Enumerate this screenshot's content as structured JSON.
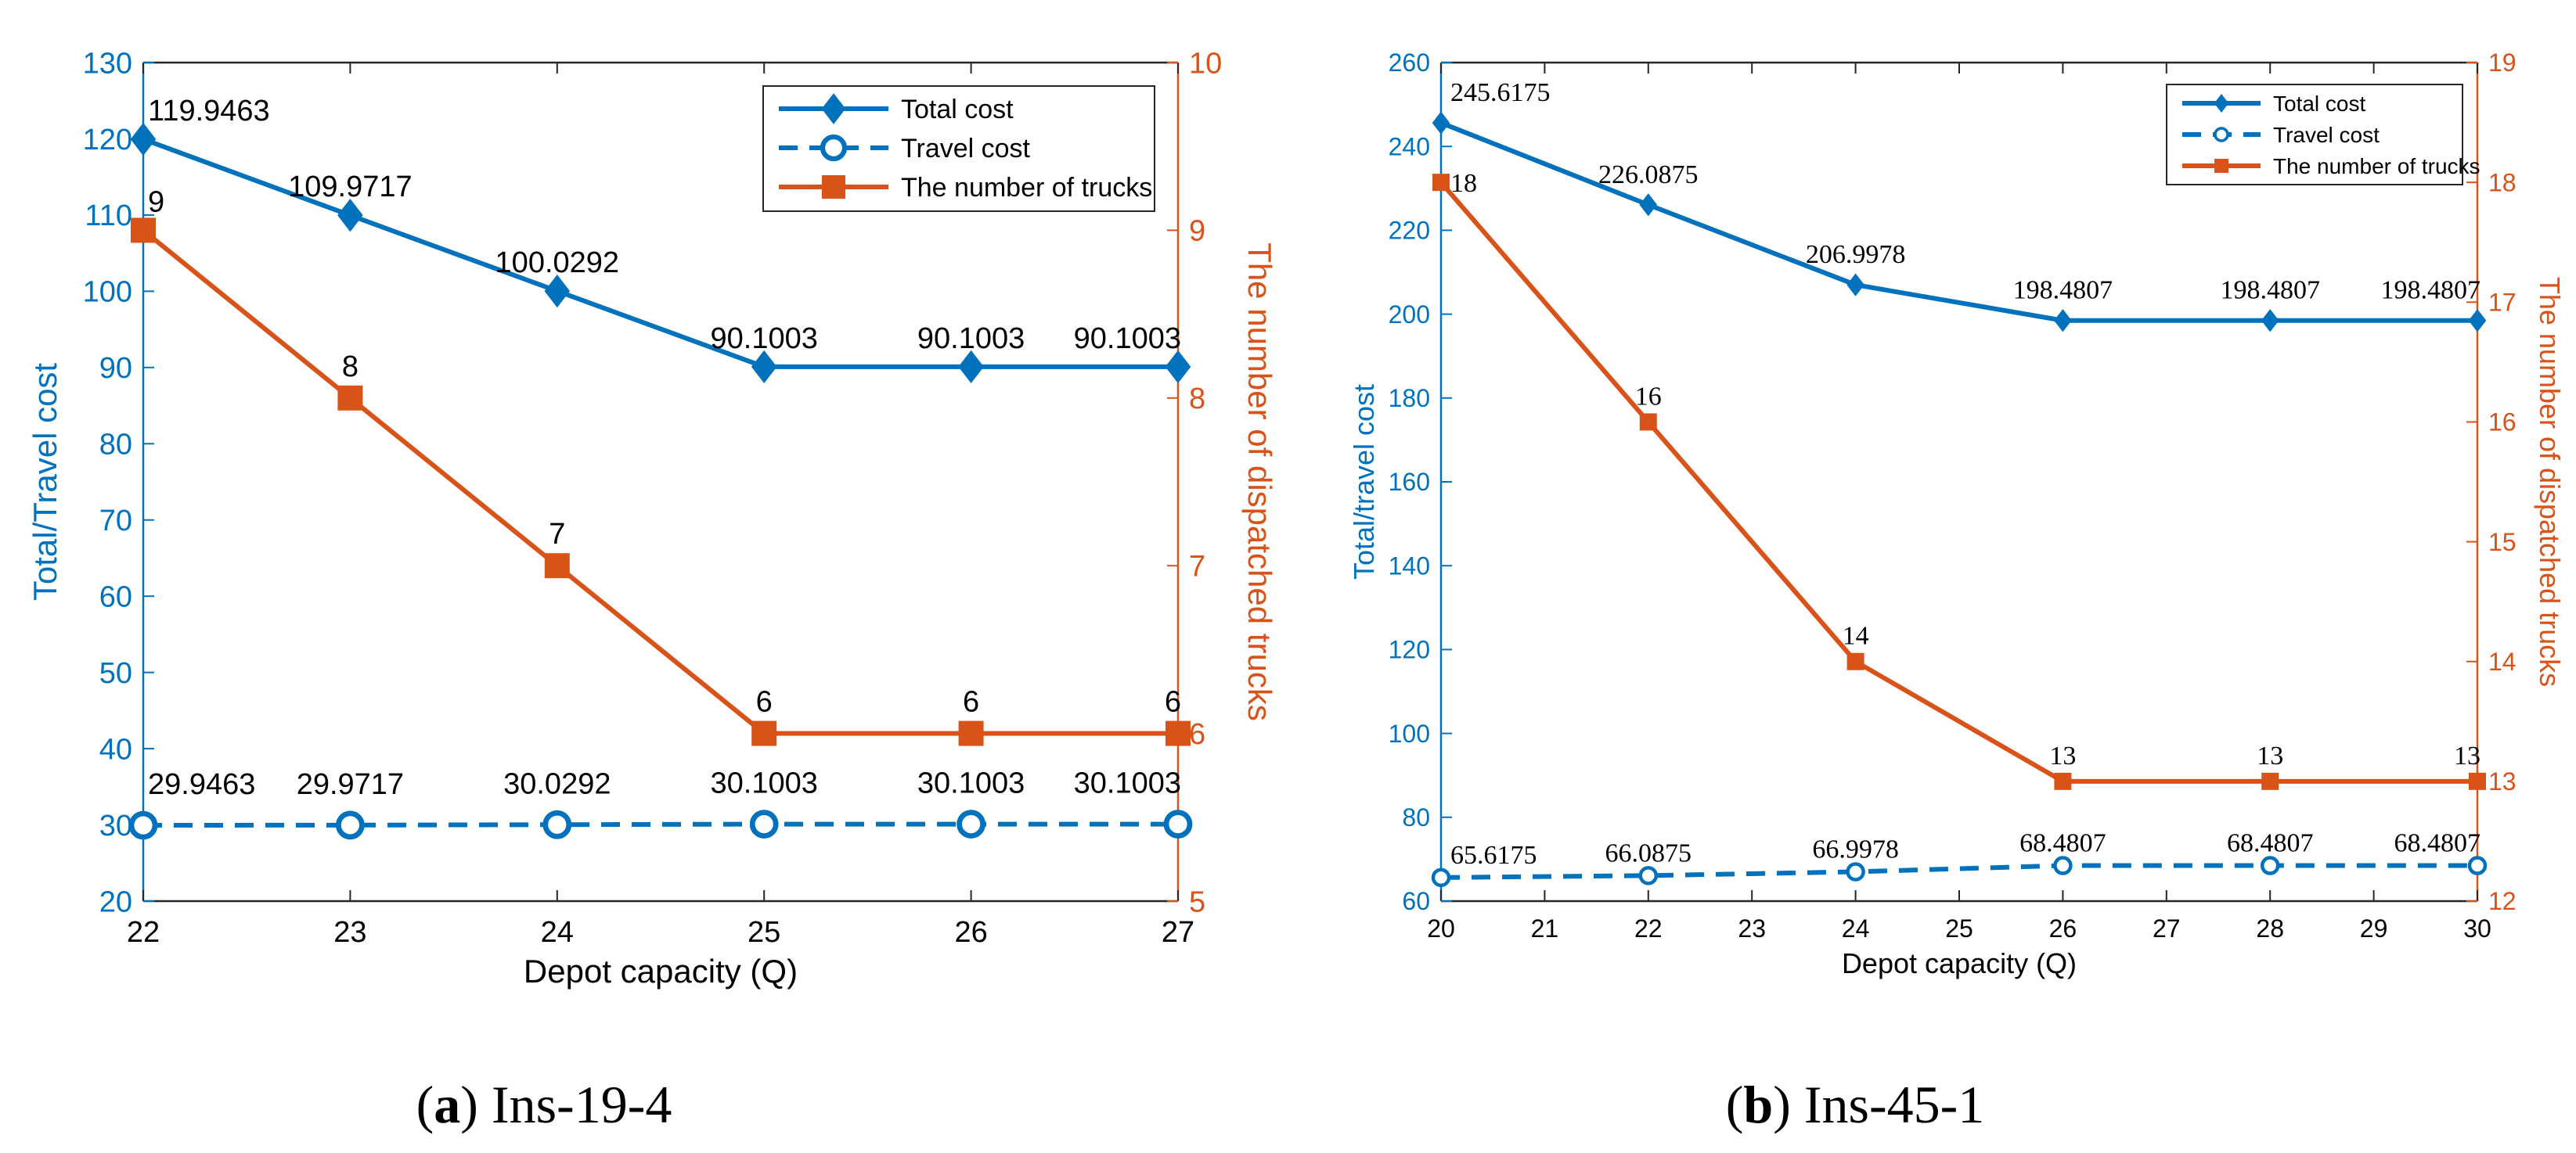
{
  "chart_data": [
    {
      "type": "line",
      "panel_label": "a",
      "caption": "Ins-19-4",
      "x": [
        22,
        23,
        24,
        25,
        26,
        27
      ],
      "xlabel": "Depot capacity (Q)",
      "ylabel": "Total/Travel cost",
      "y2label": "The number of dispatched trucks",
      "xlim": [
        22,
        27
      ],
      "ylim": [
        20,
        130
      ],
      "y2lim": [
        5,
        10
      ],
      "xticks": [
        22,
        23,
        24,
        25,
        26,
        27
      ],
      "yticks": [
        20,
        30,
        40,
        50,
        60,
        70,
        80,
        90,
        100,
        110,
        120,
        130
      ],
      "y2ticks": [
        5,
        6,
        7,
        8,
        9,
        10
      ],
      "grid": false,
      "legend_position": "top-right",
      "series": [
        {
          "name": "Total cost",
          "axis": "left",
          "color": "#0072BD",
          "marker": "diamond",
          "style": "solid",
          "values": [
            119.9463,
            109.9717,
            100.0292,
            90.1003,
            90.1003,
            90.1003
          ],
          "labels": [
            "119.9463",
            "109.9717",
            "100.0292",
            "90.1003",
            "90.1003",
            "90.1003"
          ]
        },
        {
          "name": "Travel cost",
          "axis": "left",
          "color": "#0072BD",
          "marker": "circle",
          "style": "dashed",
          "values": [
            29.9463,
            29.9717,
            30.0292,
            30.1003,
            30.1003,
            30.1003
          ],
          "labels": [
            "29.9463",
            "29.9717",
            "30.0292",
            "30.1003",
            "30.1003",
            "30.1003"
          ]
        },
        {
          "name": "The number of trucks",
          "axis": "right",
          "color": "#D95319",
          "marker": "square",
          "style": "solid",
          "values": [
            9,
            8,
            7,
            6,
            6,
            6
          ],
          "labels": [
            "9",
            "8",
            "7",
            "6",
            "6",
            "6"
          ]
        }
      ]
    },
    {
      "type": "line",
      "panel_label": "b",
      "caption": "Ins-45-1",
      "x": [
        20,
        22,
        24,
        26,
        28,
        30
      ],
      "xlabel": "Depot capacity (Q)",
      "ylabel": "Total/travel cost",
      "y2label": "The number of dispatched trucks",
      "xlim": [
        20,
        30
      ],
      "ylim": [
        60,
        260
      ],
      "y2lim": [
        12,
        19
      ],
      "xticks": [
        20,
        21,
        22,
        23,
        24,
        25,
        26,
        27,
        28,
        29,
        30
      ],
      "yticks": [
        60,
        80,
        100,
        120,
        140,
        160,
        180,
        200,
        220,
        240,
        260
      ],
      "y2ticks": [
        12,
        13,
        14,
        15,
        16,
        17,
        18,
        19
      ],
      "grid": false,
      "legend_position": "top-right",
      "series": [
        {
          "name": "Total cost",
          "axis": "left",
          "color": "#0072BD",
          "marker": "diamond",
          "style": "solid",
          "values": [
            245.6175,
            226.0875,
            206.9978,
            198.4807,
            198.4807,
            198.4807
          ],
          "labels": [
            "245.6175",
            "226.0875",
            "206.9978",
            "198.4807",
            "198.4807",
            "198.4807"
          ]
        },
        {
          "name": "Travel cost",
          "axis": "left",
          "color": "#0072BD",
          "marker": "circle",
          "style": "dashed",
          "values": [
            65.6175,
            66.0875,
            66.9978,
            68.4807,
            68.4807,
            68.4807
          ],
          "labels": [
            "65.6175",
            "66.0875",
            "66.9978",
            "68.4807",
            "68.4807",
            "68.4807"
          ]
        },
        {
          "name": "The number of trucks",
          "axis": "right",
          "color": "#D95319",
          "marker": "square",
          "style": "solid",
          "values": [
            18,
            16,
            14,
            13,
            13,
            13
          ],
          "labels": [
            "18",
            "16",
            "14",
            "13",
            "13",
            "13"
          ]
        }
      ]
    }
  ]
}
